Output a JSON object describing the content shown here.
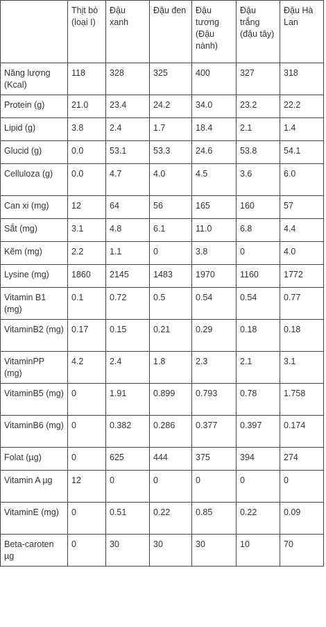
{
  "columns": [
    "",
    "Thịt bò (loại I)",
    "Đậu xanh",
    "Đậu đen",
    "Đậu tương (Đậu nành)",
    "Đậu trắng (đậu tây)",
    "Đậu Hà Lan"
  ],
  "rows": [
    {
      "label": "Năng lượng (Kcal)",
      "values": [
        "118",
        "328",
        "325",
        "400",
        "327",
        "318"
      ]
    },
    {
      "label": "Protein (g)",
      "values": [
        "21.0",
        "23.4",
        "24.2",
        "34.0",
        "23.2",
        "22.2"
      ]
    },
    {
      "label": "Lipid (g)",
      "values": [
        "3.8",
        "2.4",
        "1.7",
        "18.4",
        "2.1",
        "1.4"
      ]
    },
    {
      "label": "Glucid (g)",
      "values": [
        "0.0",
        "53.1",
        "53.3",
        "24.6",
        "53.8",
        "54.1"
      ]
    },
    {
      "label": "Celluloza (g)",
      "values": [
        "0.0",
        "4.7",
        "4.0",
        "4.5",
        "3.6",
        "6.0"
      ]
    },
    {
      "label": "Can xi (mg)",
      "values": [
        "12",
        "64",
        "56",
        "165",
        "160",
        "57"
      ]
    },
    {
      "label": "Sắt (mg)",
      "values": [
        "3.1",
        "4.8",
        "6.1",
        "11.0",
        "6.8",
        "4.4"
      ]
    },
    {
      "label": "Kẽm (mg)",
      "values": [
        "2.2",
        "1.1",
        "0",
        "3.8",
        "0",
        "4.0"
      ]
    },
    {
      "label": "Lysine (mg)",
      "values": [
        "1860",
        "2145",
        "1483",
        "1970",
        "1160",
        "1772"
      ]
    },
    {
      "label": "Vitamin B1 (mg)",
      "values": [
        "0.1",
        "0.72",
        "0.5",
        "0.54",
        "0.54",
        "0.77"
      ]
    },
    {
      "label": "VitaminB2 (mg)",
      "values": [
        "0.17",
        "0.15",
        "0.21",
        "0.29",
        "0.18",
        "0.18"
      ]
    },
    {
      "label": "VitaminPP (mg)",
      "values": [
        "4.2",
        "2.4",
        "1.8",
        "2.3",
        "2.1",
        "3.1"
      ]
    },
    {
      "label": "VitaminB5 (mg)",
      "values": [
        "0",
        "1.91",
        "0.899",
        "0.793",
        "0.78",
        "1.758"
      ]
    },
    {
      "label": "VitaminB6 (mg)",
      "values": [
        "0",
        "0.382",
        "0.286",
        "0.377",
        "0.397",
        "0.174"
      ]
    },
    {
      "label": "Folat (µg)",
      "values": [
        "0",
        "625",
        "444",
        "375",
        "394",
        "274"
      ]
    },
    {
      "label": "Vitamin A µg",
      "values": [
        "12",
        "0",
        "0",
        "0",
        "0",
        "0"
      ]
    },
    {
      "label": "VitaminE (mg)",
      "values": [
        "0",
        "0.51",
        "0.22",
        "0.85",
        "0.22",
        "0.09"
      ]
    },
    {
      "label": "Beta-caroten µg",
      "values": [
        "0",
        "30",
        "30",
        "30",
        "10",
        "70"
      ]
    }
  ]
}
